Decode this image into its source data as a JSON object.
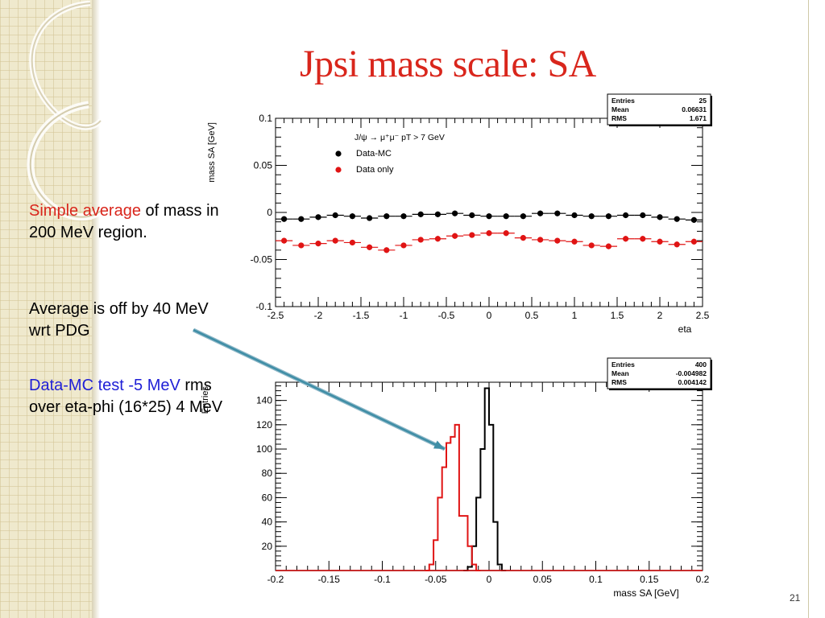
{
  "slide": {
    "title": "Jpsi mass scale: SA",
    "paragraph1": {
      "red": "Simple average",
      "rest": " of mass in 200 MeV region."
    },
    "paragraph2": "Average is off by 40 MeV wrt PDG",
    "paragraph3": {
      "blue": "Data-MC test -5 MeV",
      "rest": " rms over eta-phi (16*25) 4 MeV"
    },
    "page_number": "21"
  },
  "colors": {
    "title": "#d9261c",
    "highlight_red": "#d9261c",
    "highlight_blue": "#1f1fd6",
    "arrow": "#3f8ea6",
    "data_mc": "#000000",
    "data_only": "#e01414"
  },
  "chart_data": [
    {
      "type": "scatter",
      "title": "",
      "xlabel": "eta",
      "ylabel": "mass SA [GeV]",
      "xlim": [
        -2.5,
        2.5
      ],
      "ylim": [
        -0.1,
        0.1
      ],
      "x_ticks": [
        "-2.5",
        "-2",
        "-1.5",
        "-1",
        "-0.5",
        "0",
        "0.5",
        "1",
        "1.5",
        "2",
        "2.5"
      ],
      "y_ticks": [
        "-0.1",
        "-0.05",
        "0",
        "0.05",
        "0.1"
      ],
      "legend": {
        "header": "J/ψ → μ⁺μ⁻  pT > 7 GeV",
        "position": "top-left",
        "entries": [
          "Data-MC",
          "Data only"
        ]
      },
      "stats": {
        "rows": [
          [
            "Entries",
            "25"
          ],
          [
            "Mean",
            "0.06631"
          ],
          [
            "RMS",
            "1.671"
          ]
        ]
      },
      "x": [
        -2.4,
        -2.2,
        -2.0,
        -1.8,
        -1.6,
        -1.4,
        -1.2,
        -1.0,
        -0.8,
        -0.6,
        -0.4,
        -0.2,
        0.0,
        0.2,
        0.4,
        0.6,
        0.8,
        1.0,
        1.2,
        1.4,
        1.6,
        1.8,
        2.0,
        2.2,
        2.4
      ],
      "series": [
        {
          "name": "Data-MC",
          "values": [
            -0.007,
            -0.007,
            -0.005,
            -0.003,
            -0.004,
            -0.006,
            -0.004,
            -0.004,
            -0.002,
            -0.002,
            -0.001,
            -0.003,
            -0.004,
            -0.004,
            -0.004,
            -0.001,
            -0.001,
            -0.003,
            -0.004,
            -0.004,
            -0.003,
            -0.003,
            -0.005,
            -0.007,
            -0.008
          ]
        },
        {
          "name": "Data only",
          "values": [
            -0.03,
            -0.035,
            -0.033,
            -0.03,
            -0.032,
            -0.037,
            -0.04,
            -0.035,
            -0.029,
            -0.028,
            -0.025,
            -0.024,
            -0.022,
            -0.022,
            -0.027,
            -0.029,
            -0.03,
            -0.031,
            -0.035,
            -0.036,
            -0.028,
            -0.028,
            -0.031,
            -0.034,
            -0.031
          ]
        }
      ]
    },
    {
      "type": "histogram",
      "title": "",
      "xlabel": "mass SA [GeV]",
      "ylabel": "Entries",
      "xlim": [
        -0.2,
        0.2
      ],
      "ylim": [
        0,
        155
      ],
      "x_ticks": [
        "-0.2",
        "-0.15",
        "-0.1",
        "-0.05",
        "0",
        "0.05",
        "0.1",
        "0.15",
        "0.2"
      ],
      "y_ticks": [
        "20",
        "40",
        "60",
        "80",
        "100",
        "120",
        "140"
      ],
      "stats": {
        "rows": [
          [
            "Entries",
            "400"
          ],
          [
            "Mean",
            "-0.004982"
          ],
          [
            "RMS",
            "0.004142"
          ]
        ]
      },
      "bin_width": 0.004,
      "series": [
        {
          "name": "Data-MC",
          "bins": [
            [
              -0.024,
              0
            ],
            [
              -0.02,
              3
            ],
            [
              -0.016,
              20
            ],
            [
              -0.012,
              60
            ],
            [
              -0.008,
              100
            ],
            [
              -0.004,
              150
            ],
            [
              0.0,
              120
            ],
            [
              0.004,
              40
            ],
            [
              0.008,
              5
            ],
            [
              0.012,
              0
            ]
          ]
        },
        {
          "name": "Data only",
          "bins": [
            [
              -0.06,
              0
            ],
            [
              -0.056,
              5
            ],
            [
              -0.052,
              25
            ],
            [
              -0.048,
              60
            ],
            [
              -0.044,
              85
            ],
            [
              -0.04,
              105
            ],
            [
              -0.036,
              110
            ],
            [
              -0.032,
              120
            ],
            [
              -0.028,
              45
            ],
            [
              -0.024,
              45
            ],
            [
              -0.02,
              20
            ],
            [
              -0.016,
              5
            ],
            [
              -0.012,
              0
            ]
          ]
        }
      ]
    }
  ]
}
